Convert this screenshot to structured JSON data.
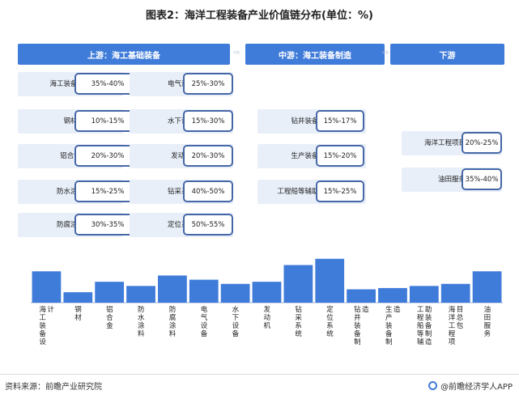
{
  "title": "图表2：海洋工程装备产业价值链分布(单位：%)",
  "stages": {
    "upstream": "上游：海工基础装备",
    "midstream": "中游：海工装备制造",
    "downstream": "下游"
  },
  "arrow_glyph": "⇨",
  "upstream_left": [
    {
      "label": "海工装备设计",
      "range": "35%-40%"
    },
    {
      "label": "钢材",
      "range": "10%-15%"
    },
    {
      "label": "铝合金",
      "range": "20%-30%"
    },
    {
      "label": "防水涂料",
      "range": "15%-25%"
    },
    {
      "label": "防腐涂料",
      "range": "30%-35%"
    }
  ],
  "upstream_right": [
    {
      "label": "电气设备",
      "range": "25%-30%"
    },
    {
      "label": "水下设备",
      "range": "15%-30%"
    },
    {
      "label": "发动机",
      "range": "20%-30%"
    },
    {
      "label": "钻采系统",
      "range": "40%-50%"
    },
    {
      "label": "定位系统",
      "range": "50%-55%"
    }
  ],
  "midstream_items": [
    {
      "label": "钻井装备制造",
      "range": "15%-17%"
    },
    {
      "label": "生产装备制造",
      "range": "15%-20%"
    },
    {
      "label": "工程船等辅助装备制造",
      "range": "15%-25%"
    }
  ],
  "downstream_items": [
    {
      "label": "海洋工程项目总包",
      "range": "20%-25%"
    },
    {
      "label": "油田服务",
      "range": "35%-40%"
    }
  ],
  "chart_data": {
    "type": "bar",
    "categories": [
      "海工装备设计",
      "钢材",
      "铝合金",
      "防水涂料",
      "防腐涂料",
      "电气设备",
      "水下设备",
      "发动机",
      "钻采系统",
      "定位系统",
      "钻井装备制造",
      "生产装备制造",
      "工程船等辅助装备制造",
      "海洋工程项目总包",
      "油田服务"
    ],
    "values": [
      37.5,
      12.5,
      25,
      20,
      32.5,
      27.5,
      22.5,
      25,
      45,
      52.5,
      16,
      17.5,
      20,
      22.5,
      37.5
    ],
    "ylim": [
      0,
      60
    ],
    "color": "#3f7bd9"
  },
  "footer": {
    "source": "资料来源：前瞻产业研究院",
    "brand": "@前瞻经济学人APP"
  }
}
